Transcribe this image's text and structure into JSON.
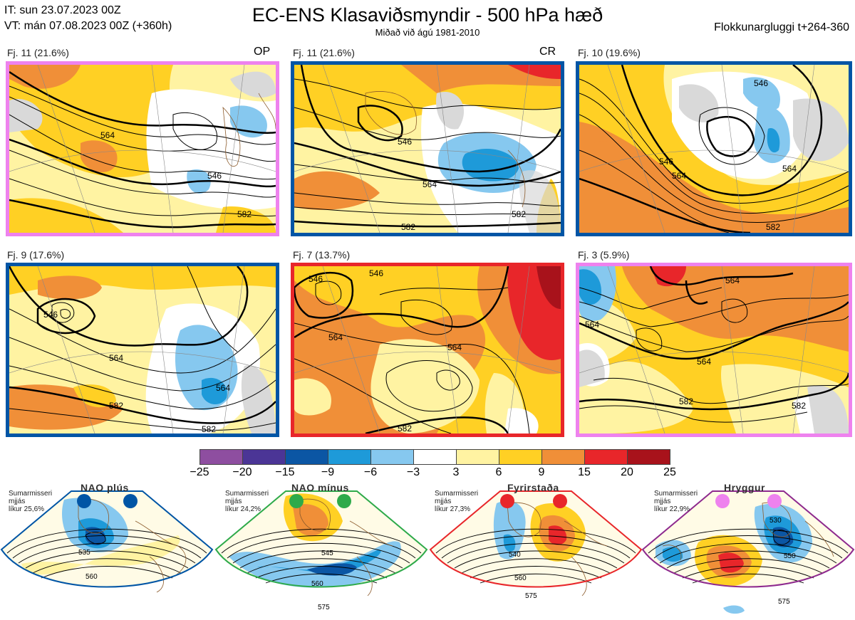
{
  "header": {
    "it": "IT: sun 23.07.2023 00Z",
    "vt": "VT: mán 07.08.2023 00Z  (+360h)",
    "title": "EC-ENS Klasaviðsmyndir - 500 hPa hæð",
    "subtitle": "Miðað við ágú 1981-2010",
    "window": "Flokkunargluggi t+264-360"
  },
  "colors": {
    "ice": "#d9d9d9",
    "coast": "#8b5a2b",
    "contour": "#000000"
  },
  "panels": [
    {
      "label": "Fj. 11 (21.6%)",
      "tag": "OP",
      "frame": "#ee82ee",
      "contour_labels": [
        "564",
        "546",
        "582"
      ]
    },
    {
      "label": "Fj. 11 (21.6%)",
      "tag": "CR",
      "frame": "#0055a5",
      "contour_labels": [
        "546",
        "564",
        "582",
        "582"
      ]
    },
    {
      "label": "Fj. 10 (19.6%)",
      "tag": "",
      "frame": "#0055a5",
      "contour_labels": [
        "546",
        "564",
        "546",
        "564",
        "582"
      ]
    },
    {
      "label": "Fj. 9 (17.6%)",
      "tag": "",
      "frame": "#0055a5",
      "contour_labels": [
        "546",
        "564",
        "582",
        "564",
        "582"
      ]
    },
    {
      "label": "Fj. 7 (13.7%)",
      "tag": "",
      "frame": "#e8262a",
      "contour_labels": [
        "546",
        "546",
        "564",
        "564",
        "582"
      ]
    },
    {
      "label": "Fj. 3 (5.9%)",
      "tag": "",
      "frame": "#ee82ee",
      "contour_labels": [
        "564",
        "564",
        "564",
        "582",
        "582"
      ]
    }
  ],
  "colorbar": {
    "ticks": [
      "−25",
      "−20",
      "−15",
      "−9",
      "−6",
      "−3",
      "3",
      "6",
      "9",
      "15",
      "20",
      "25"
    ],
    "colors": [
      "#8e4ea0",
      "#4b3596",
      "#0b56a4",
      "#1e9ad9",
      "#86c8ef",
      "#ffffff",
      "#fff3a2",
      "#ffd024",
      "#f08f38",
      "#e8262a",
      "#a8121b"
    ]
  },
  "regimes": [
    {
      "name": "NAO plús",
      "season": "Sumarmisseri",
      "smooth": "mjjás",
      "prob": "líkur 25,6%",
      "color": "#0055a5",
      "contour_labels": [
        "535",
        "560"
      ]
    },
    {
      "name": "NAO mínus",
      "season": "Sumarmisseri",
      "smooth": "mjjás",
      "prob": "líkur 24,2%",
      "color": "#2eaa4a",
      "contour_labels": [
        "545",
        "560",
        "575"
      ]
    },
    {
      "name": "Fyrirstaða",
      "season": "Sumarmisseri",
      "smooth": "mjjás",
      "prob": "líkur 27,3%",
      "color": "#e8262a",
      "contour_labels": [
        "540",
        "560",
        "575"
      ]
    },
    {
      "name": "Hryggur",
      "season": "Sumarmisseri",
      "smooth": "mjjás",
      "prob": "líkur 22,9%",
      "color": "#ee82ee",
      "contour_labels": [
        "530",
        "550",
        "575"
      ]
    }
  ]
}
